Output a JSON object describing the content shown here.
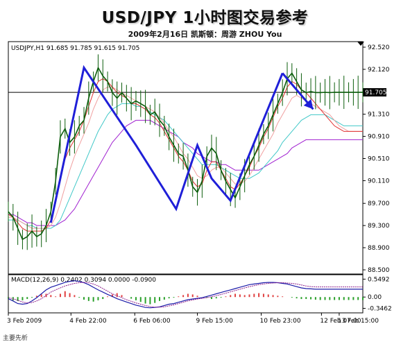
{
  "header": {
    "title": "USD/JPY  1小时图交易参考",
    "subtitle": "2009年2月16日   凯斯顿：周游 ZHOU You"
  },
  "caption": "主要先析",
  "colors": {
    "price": "#0b5d0b",
    "zigzag": "#1f1fd8",
    "ma_fast": "#e03030",
    "ma_mid": "#f0a0a0",
    "ma_slow": "#40c8c8",
    "ma_long": "#a020d0",
    "macd_hist_up": "#e04040",
    "macd_hist_down": "#2aa02a",
    "macd_line": "#1a1aa8",
    "signal_line": "#8a1a8a",
    "current_marker": "#000000"
  },
  "chart_data": [
    {
      "type": "line",
      "panel": "price",
      "header_label": "USDJPY,H1  91.685 91.785 91.615 91.705",
      "ylim": [
        88.5,
        92.52
      ],
      "y_ticks": [
        "92.520",
        "92.120",
        "91.705",
        "91.310",
        "90.910",
        "90.510",
        "90.110",
        "89.700",
        "89.300",
        "88.900",
        "88.500"
      ],
      "current_price": "91.705",
      "x": [
        0,
        4,
        8,
        12,
        16,
        20,
        24,
        28,
        32,
        36,
        40,
        44,
        48,
        52,
        56,
        60,
        64,
        68,
        72,
        76,
        80,
        84,
        88,
        92,
        96,
        100,
        104,
        108,
        112,
        116,
        120,
        124,
        128,
        132,
        136,
        140,
        144,
        148,
        152,
        156,
        160,
        164,
        168,
        172,
        176,
        180,
        184,
        188,
        192,
        196,
        200,
        204,
        208,
        212,
        216,
        220,
        224,
        228,
        232,
        236,
        240,
        244,
        248,
        252,
        256,
        260,
        264,
        268,
        272,
        276,
        280,
        284,
        288,
        292,
        296,
        300
      ],
      "x_tick_positions": [
        0,
        53,
        107,
        160,
        214,
        265,
        280
      ],
      "x_tick_labels": [
        "3 Feb 2009",
        "4 Feb 22:00",
        "6 Feb 06:00",
        "9 Feb 15:00",
        "10 Feb 23:00",
        "12 Feb 07:00",
        "13 Feb 15:00"
      ],
      "series": [
        {
          "key": "price",
          "values": [
            89.55,
            89.45,
            89.25,
            89.05,
            89.1,
            89.2,
            89.1,
            89.15,
            89.3,
            89.55,
            90.1,
            90.9,
            91.05,
            90.8,
            90.9,
            91.1,
            91.2,
            91.6,
            91.9,
            92.15,
            92.0,
            91.9,
            91.7,
            91.6,
            91.7,
            91.6,
            91.5,
            91.55,
            91.5,
            91.45,
            91.3,
            91.35,
            91.2,
            91.1,
            90.9,
            90.75,
            90.6,
            90.55,
            90.3,
            90.0,
            89.9,
            90.1,
            90.55,
            90.7,
            90.6,
            90.3,
            90.1,
            89.95,
            89.8,
            90.0,
            90.2,
            90.4,
            90.55,
            90.75,
            90.95,
            91.1,
            91.3,
            91.5,
            91.7,
            91.95,
            92.05,
            91.9,
            91.75,
            91.7,
            91.72,
            91.7,
            91.7,
            91.705,
            91.7,
            91.705,
            91.705,
            91.705,
            91.705,
            91.705,
            91.705,
            91.705
          ]
        },
        {
          "key": "ma_fast",
          "values": [
            89.5,
            89.45,
            89.35,
            89.25,
            89.2,
            89.2,
            89.2,
            89.2,
            89.25,
            89.4,
            89.7,
            90.1,
            90.5,
            90.7,
            90.85,
            91.0,
            91.2,
            91.45,
            91.7,
            91.9,
            91.95,
            91.9,
            91.8,
            91.7,
            91.65,
            91.6,
            91.5,
            91.5,
            91.45,
            91.4,
            91.3,
            91.25,
            91.15,
            91.0,
            90.85,
            90.7,
            90.55,
            90.45,
            90.3,
            90.1,
            90.0,
            90.05,
            90.3,
            90.45,
            90.45,
            90.3,
            90.15,
            90.0,
            89.95,
            90.05,
            90.2,
            90.35,
            90.55,
            90.7,
            90.9,
            91.05,
            91.25,
            91.45,
            91.6,
            91.8,
            91.9,
            91.85,
            91.75,
            91.7,
            91.6,
            91.5,
            91.4,
            91.3,
            91.2,
            91.1,
            91.05,
            91.0,
            91.0,
            91.0,
            91.0,
            91.0
          ]
        },
        {
          "key": "ma_mid",
          "values": [
            89.45,
            89.45,
            89.4,
            89.35,
            89.3,
            89.25,
            89.25,
            89.25,
            89.25,
            89.3,
            89.45,
            89.7,
            90.0,
            90.3,
            90.55,
            90.75,
            90.95,
            91.15,
            91.4,
            91.6,
            91.75,
            91.8,
            91.8,
            91.75,
            91.7,
            91.65,
            91.6,
            91.55,
            91.5,
            91.45,
            91.4,
            91.35,
            91.25,
            91.15,
            91.0,
            90.9,
            90.75,
            90.6,
            90.5,
            90.35,
            90.2,
            90.15,
            90.2,
            90.3,
            90.35,
            90.35,
            90.25,
            90.15,
            90.05,
            90.05,
            90.1,
            90.2,
            90.35,
            90.5,
            90.65,
            90.8,
            90.95,
            91.15,
            91.3,
            91.45,
            91.6,
            91.65,
            91.6,
            91.55,
            91.5,
            91.45,
            91.4,
            91.35,
            91.3,
            91.2,
            91.1,
            91.05,
            91.0,
            91.0,
            91.0,
            91.0
          ]
        },
        {
          "key": "ma_slow",
          "values": [
            89.4,
            89.4,
            89.4,
            89.35,
            89.3,
            89.3,
            89.25,
            89.25,
            89.25,
            89.25,
            89.3,
            89.4,
            89.6,
            89.8,
            90.0,
            90.2,
            90.4,
            90.6,
            90.8,
            91.0,
            91.15,
            91.3,
            91.4,
            91.45,
            91.5,
            91.5,
            91.5,
            91.45,
            91.45,
            91.4,
            91.35,
            91.3,
            91.25,
            91.2,
            91.1,
            91.0,
            90.9,
            90.8,
            90.7,
            90.6,
            90.5,
            90.4,
            90.4,
            90.4,
            90.4,
            90.35,
            90.3,
            90.25,
            90.2,
            90.15,
            90.15,
            90.15,
            90.2,
            90.25,
            90.35,
            90.45,
            90.55,
            90.65,
            90.8,
            90.9,
            91.0,
            91.1,
            91.2,
            91.25,
            91.3,
            91.3,
            91.3,
            91.3,
            91.25,
            91.2,
            91.15,
            91.1,
            91.1,
            91.1,
            91.1,
            91.1
          ]
        },
        {
          "key": "ma_long",
          "values": [
            89.5,
            89.5,
            89.45,
            89.4,
            89.35,
            89.35,
            89.3,
            89.3,
            89.3,
            89.3,
            89.3,
            89.35,
            89.4,
            89.5,
            89.6,
            89.75,
            89.9,
            90.05,
            90.2,
            90.35,
            90.5,
            90.65,
            90.8,
            90.9,
            91.0,
            91.1,
            91.15,
            91.2,
            91.2,
            91.2,
            91.2,
            91.15,
            91.1,
            91.05,
            91.0,
            90.95,
            90.9,
            90.8,
            90.75,
            90.7,
            90.6,
            90.55,
            90.5,
            90.45,
            90.45,
            90.4,
            90.4,
            90.35,
            90.3,
            90.3,
            90.3,
            90.3,
            90.3,
            90.3,
            90.35,
            90.4,
            90.45,
            90.5,
            90.55,
            90.6,
            90.7,
            90.75,
            90.8,
            90.85,
            90.85,
            90.85,
            90.85,
            90.85,
            90.85,
            90.85,
            90.85,
            90.85,
            90.85,
            90.85,
            90.85,
            90.85
          ]
        }
      ],
      "zigzag": {
        "x": [
          36,
          64,
          108,
          142,
          160,
          172,
          188,
          232
        ],
        "y": [
          89.35,
          92.15,
          90.75,
          89.6,
          90.75,
          90.15,
          89.75,
          92.05
        ]
      },
      "arrow": {
        "x": [
          232,
          258
        ],
        "y": [
          92.05,
          91.4
        ]
      },
      "grid": false
    },
    {
      "type": "bar",
      "panel": "macd",
      "header_label": "MACD(12,26,9)  0.2402  0.3094  0.0000  -0.0900",
      "ylim": [
        -0.4,
        0.6
      ],
      "y_ticks": [
        "0.5492",
        "0.00",
        "-0.3462"
      ],
      "x": [
        0,
        4,
        8,
        12,
        16,
        20,
        24,
        28,
        32,
        36,
        40,
        44,
        48,
        52,
        56,
        60,
        64,
        68,
        72,
        76,
        80,
        84,
        88,
        92,
        96,
        100,
        104,
        108,
        112,
        116,
        120,
        124,
        128,
        132,
        136,
        140,
        144,
        148,
        152,
        156,
        160,
        164,
        168,
        172,
        176,
        180,
        184,
        188,
        192,
        196,
        200,
        204,
        208,
        212,
        216,
        220,
        224,
        228,
        232,
        236,
        240,
        244,
        248,
        252,
        256,
        260,
        264,
        268,
        272,
        276,
        280,
        284,
        288,
        292,
        296,
        300
      ],
      "histogram": [
        -0.05,
        -0.1,
        -0.12,
        -0.1,
        -0.06,
        -0.02,
        0.04,
        0.08,
        0.1,
        0.06,
        0.02,
        0.1,
        0.18,
        0.12,
        0.06,
        -0.02,
        -0.08,
        -0.12,
        -0.14,
        -0.1,
        -0.06,
        0.02,
        0.08,
        0.12,
        0.06,
        0.0,
        -0.05,
        -0.1,
        -0.15,
        -0.2,
        -0.22,
        -0.18,
        -0.12,
        -0.08,
        -0.04,
        -0.02,
        0.02,
        0.06,
        0.1,
        0.08,
        0.04,
        0.0,
        -0.02,
        -0.06,
        -0.04,
        -0.02,
        0.02,
        0.06,
        0.1,
        0.08,
        0.06,
        0.08,
        0.1,
        0.12,
        0.1,
        0.08,
        0.06,
        0.04,
        0.02,
        0.0,
        -0.02,
        -0.04,
        -0.06,
        -0.06,
        -0.07,
        -0.08,
        -0.09,
        -0.09,
        -0.09,
        -0.09,
        -0.09,
        -0.09,
        -0.09,
        -0.09,
        -0.09,
        -0.09
      ],
      "macd_line": [
        -0.05,
        -0.12,
        -0.2,
        -0.22,
        -0.2,
        -0.12,
        -0.02,
        0.1,
        0.22,
        0.3,
        0.35,
        0.4,
        0.45,
        0.48,
        0.5,
        0.48,
        0.44,
        0.38,
        0.3,
        0.22,
        0.15,
        0.08,
        0.02,
        -0.05,
        -0.1,
        -0.15,
        -0.2,
        -0.25,
        -0.28,
        -0.32,
        -0.33,
        -0.32,
        -0.3,
        -0.26,
        -0.22,
        -0.2,
        -0.16,
        -0.12,
        -0.08,
        -0.06,
        -0.04,
        -0.02,
        0.02,
        0.06,
        0.1,
        0.14,
        0.18,
        0.22,
        0.26,
        0.3,
        0.34,
        0.38,
        0.4,
        0.42,
        0.44,
        0.45,
        0.45,
        0.44,
        0.42,
        0.4,
        0.36,
        0.32,
        0.28,
        0.26,
        0.25,
        0.24,
        0.24,
        0.24,
        0.24,
        0.24,
        0.24,
        0.24,
        0.24,
        0.24,
        0.24,
        0.24
      ],
      "signal_line": [
        -0.02,
        -0.05,
        -0.1,
        -0.15,
        -0.18,
        -0.17,
        -0.12,
        -0.05,
        0.05,
        0.15,
        0.22,
        0.28,
        0.34,
        0.38,
        0.42,
        0.44,
        0.45,
        0.44,
        0.4,
        0.34,
        0.26,
        0.18,
        0.1,
        0.04,
        -0.02,
        -0.08,
        -0.13,
        -0.18,
        -0.22,
        -0.26,
        -0.29,
        -0.31,
        -0.31,
        -0.3,
        -0.27,
        -0.24,
        -0.2,
        -0.16,
        -0.12,
        -0.09,
        -0.06,
        -0.04,
        -0.02,
        0.01,
        0.04,
        0.08,
        0.12,
        0.16,
        0.2,
        0.24,
        0.28,
        0.32,
        0.35,
        0.38,
        0.4,
        0.42,
        0.43,
        0.44,
        0.44,
        0.43,
        0.42,
        0.4,
        0.37,
        0.34,
        0.32,
        0.31,
        0.31,
        0.31,
        0.31,
        0.31,
        0.31,
        0.31,
        0.31,
        0.31,
        0.31,
        0.31
      ],
      "grid": false
    }
  ]
}
